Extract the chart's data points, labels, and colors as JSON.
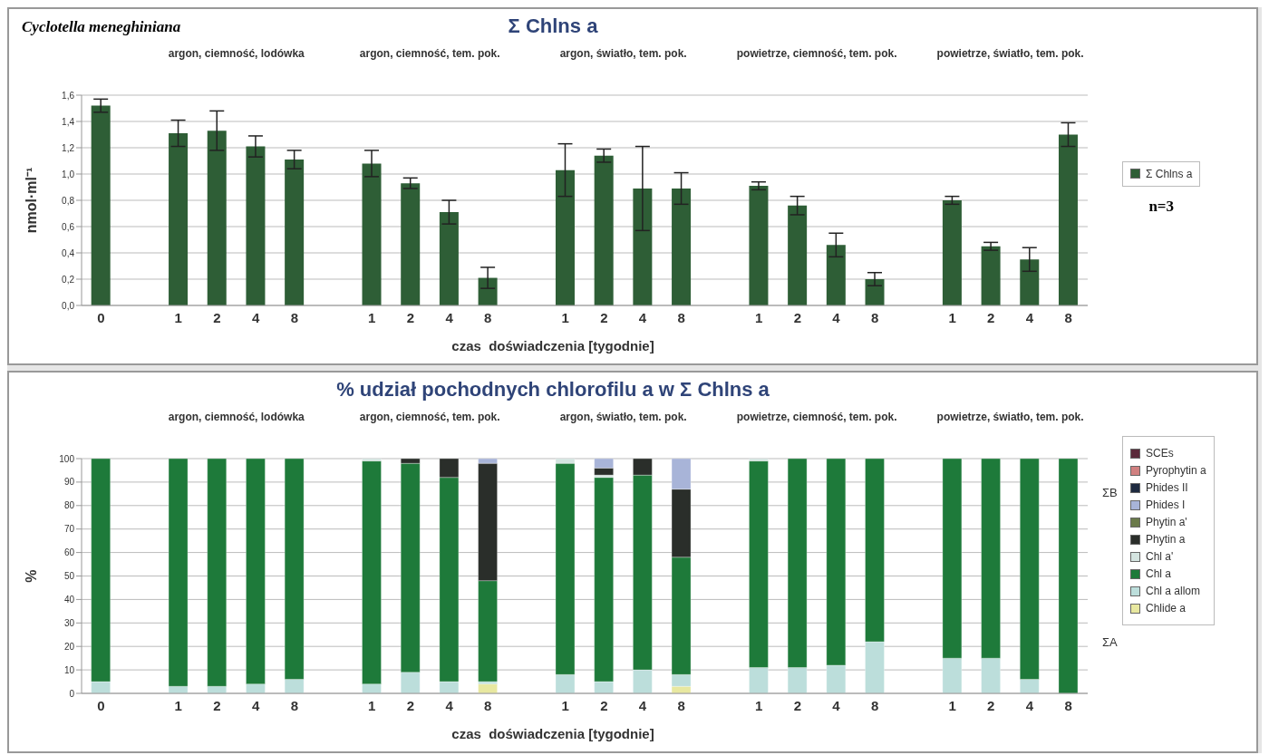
{
  "chart_data": [
    {
      "type": "bar",
      "title": "Σ Chlns a",
      "subtitle": "Cyclotella meneghiniana",
      "xlabel": "czas  doświadczenia [tygodnie]",
      "ylabel": "nmol·ml⁻¹",
      "categories": [
        "0",
        null,
        "1",
        "2",
        "4",
        "8",
        null,
        "1",
        "2",
        "4",
        "8",
        null,
        "1",
        "2",
        "4",
        "8",
        null,
        "1",
        "2",
        "4",
        "8",
        null,
        "1",
        "2",
        "4",
        "8"
      ],
      "series": [
        {
          "name": "Σ Chlns a",
          "color": "#2e5e36",
          "values": [
            1.52,
            null,
            1.31,
            1.33,
            1.21,
            1.11,
            null,
            1.08,
            0.93,
            0.71,
            0.21,
            null,
            1.03,
            1.14,
            0.89,
            0.89,
            null,
            0.91,
            0.76,
            0.46,
            0.2,
            null,
            0.8,
            0.45,
            0.35,
            1.3
          ],
          "errors": [
            0.05,
            null,
            0.1,
            0.15,
            0.08,
            0.07,
            null,
            0.1,
            0.04,
            0.09,
            0.08,
            null,
            0.2,
            0.05,
            0.32,
            0.12,
            null,
            0.03,
            0.07,
            0.09,
            0.05,
            null,
            0.03,
            0.03,
            0.09,
            0.09
          ]
        }
      ],
      "ylim": [
        0,
        1.6
      ],
      "yticks": [
        {
          "value": 0,
          "label": "0,0"
        },
        {
          "value": 0.2,
          "label": "0,2"
        },
        {
          "value": 0.4,
          "label": "0,4"
        },
        {
          "value": 0.6,
          "label": "0,6"
        },
        {
          "value": 0.8,
          "label": "0,8"
        },
        {
          "value": 1,
          "label": "1,0"
        },
        {
          "value": 1.2,
          "label": "1,2"
        },
        {
          "value": 1.4,
          "label": "1,4"
        },
        {
          "value": 1.6,
          "label": "1,6"
        }
      ],
      "grid": "y",
      "legend": "right",
      "annotations": [
        "argon, ciemność, lodówka",
        "argon, ciemność, tem. pok.",
        "argon, światło, tem. pok.",
        "powietrze, ciemność, tem. pok.",
        "powietrze, światło, tem. pok.",
        "n=3"
      ]
    },
    {
      "type": "bar",
      "stacked": true,
      "title": "% udział pochodnych chlorofilu a w Σ Chlns a",
      "xlabel": "czas  doświadczenia [tygodnie]",
      "ylabel": "%",
      "categories": [
        "0",
        null,
        "1",
        "2",
        "4",
        "8",
        null,
        "1",
        "2",
        "4",
        "8",
        null,
        "1",
        "2",
        "4",
        "8",
        null,
        "1",
        "2",
        "4",
        "8",
        null,
        "1",
        "2",
        "4",
        "8"
      ],
      "series": [
        {
          "name": "Chlide a",
          "color": "#e8e8a0",
          "values": [
            0,
            null,
            0,
            0,
            0,
            0,
            null,
            0,
            0,
            0,
            4,
            null,
            0,
            0,
            0,
            3,
            null,
            0,
            0,
            0,
            0,
            null,
            0,
            0,
            0,
            0
          ]
        },
        {
          "name": "Chl a allom",
          "color": "#bcdedb",
          "values": [
            5,
            null,
            3,
            3,
            4,
            6,
            null,
            4,
            9,
            5,
            1,
            null,
            8,
            5,
            10,
            5,
            null,
            11,
            11,
            12,
            22,
            null,
            15,
            15,
            6,
            0
          ]
        },
        {
          "name": "Chl a",
          "color": "#1e7a3a",
          "values": [
            95,
            null,
            97,
            97,
            96,
            94,
            null,
            95,
            89,
            87,
            43,
            null,
            90,
            87,
            83,
            50,
            null,
            88,
            89,
            88,
            78,
            null,
            85,
            85,
            94,
            100
          ]
        },
        {
          "name": "Chl a'",
          "color": "#d4e4e0",
          "values": [
            0,
            null,
            0,
            0,
            0,
            0,
            null,
            1,
            0,
            0,
            0,
            null,
            2,
            1,
            0,
            0,
            null,
            1,
            0,
            0,
            0,
            null,
            0,
            0,
            0,
            0
          ]
        },
        {
          "name": "Phytin a",
          "color": "#2a2e2a",
          "values": [
            0,
            null,
            0,
            0,
            0,
            0,
            null,
            0,
            2,
            8,
            50,
            null,
            0,
            3,
            7,
            29,
            null,
            0,
            0,
            0,
            0,
            null,
            0,
            0,
            0,
            0
          ]
        },
        {
          "name": "Phytin a'",
          "color": "#6a7a4a",
          "values": [
            0,
            null,
            0,
            0,
            0,
            0,
            null,
            0,
            0,
            0,
            0,
            null,
            0,
            0,
            0,
            0,
            null,
            0,
            0,
            0,
            0,
            null,
            0,
            0,
            0,
            0
          ]
        },
        {
          "name": "Phides I",
          "color": "#a8b4d8",
          "values": [
            0,
            null,
            0,
            0,
            0,
            0,
            null,
            0,
            0,
            0,
            2,
            null,
            0,
            4,
            0,
            13,
            null,
            0,
            0,
            0,
            0,
            null,
            0,
            0,
            0,
            0
          ]
        },
        {
          "name": "Phides II",
          "color": "#1e2a40",
          "values": [
            0,
            null,
            0,
            0,
            0,
            0,
            null,
            0,
            0,
            0,
            0,
            null,
            0,
            0,
            0,
            0,
            null,
            0,
            0,
            0,
            0,
            null,
            0,
            0,
            0,
            0
          ]
        },
        {
          "name": "Pyrophytin a",
          "color": "#d08080",
          "values": [
            0,
            null,
            0,
            0,
            0,
            0,
            null,
            0,
            0,
            0,
            0,
            null,
            0,
            0,
            0,
            0,
            null,
            0,
            0,
            0,
            0,
            null,
            0,
            0,
            0,
            0
          ]
        },
        {
          "name": "SCEs",
          "color": "#5a2a3a",
          "values": [
            0,
            null,
            0,
            0,
            0,
            0,
            null,
            0,
            0,
            0,
            0,
            null,
            0,
            0,
            0,
            0,
            null,
            0,
            0,
            0,
            0,
            null,
            0,
            0,
            0,
            0
          ]
        }
      ],
      "ylim": [
        0,
        100
      ],
      "yticks": [
        0,
        10,
        20,
        30,
        40,
        50,
        60,
        70,
        80,
        90,
        100
      ],
      "grid": "y",
      "legend": "right",
      "annotations": [
        "argon, ciemność, lodówka",
        "argon, ciemność, tem. pok.",
        "argon, światło, tem. pok.",
        "powietrze, ciemność, tem. pok.",
        "powietrze, światło, tem. pok.",
        "ΣB",
        "ΣA"
      ]
    }
  ]
}
